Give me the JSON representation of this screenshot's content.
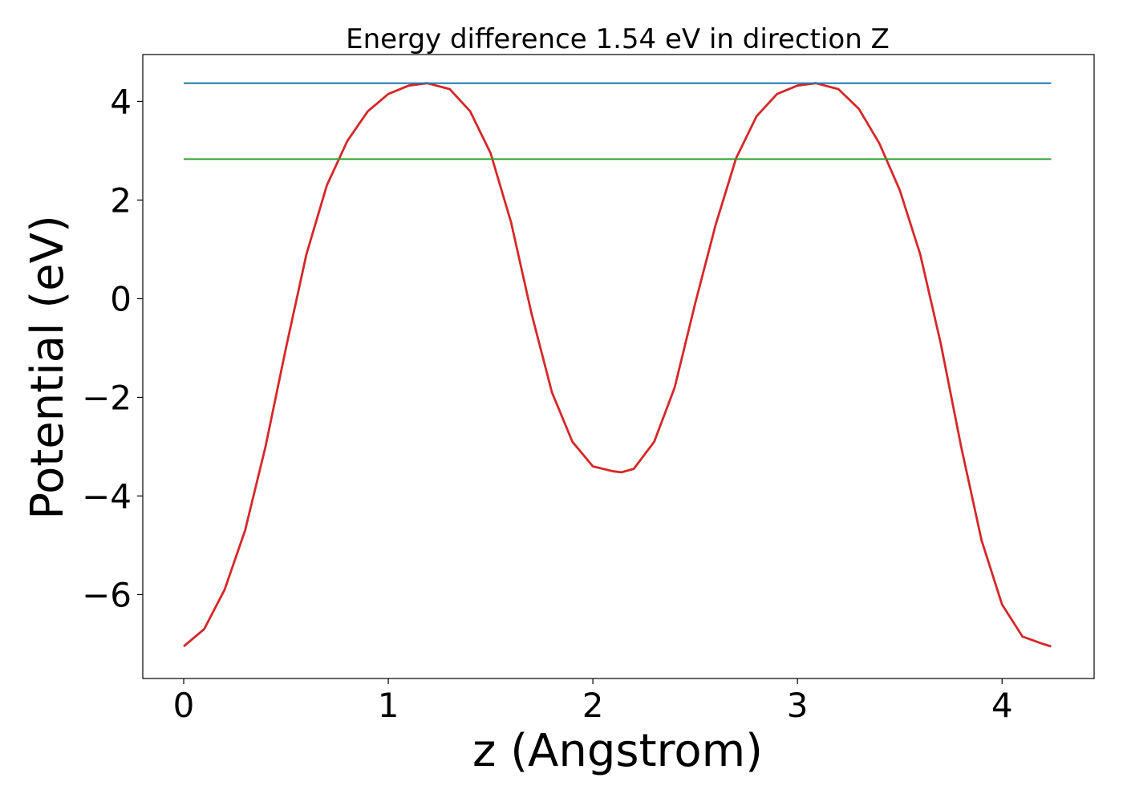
{
  "chart_data": {
    "type": "line",
    "title": "Energy difference 1.54 eV in direction Z",
    "xlabel": "z (Angstrom)",
    "ylabel": "Potential (eV)",
    "xlim": [
      -0.2,
      4.45
    ],
    "ylim": [
      -7.7,
      4.95
    ],
    "xticks": [
      0,
      1,
      2,
      3,
      4
    ],
    "yticks": [
      -6,
      -4,
      -2,
      0,
      2,
      4
    ],
    "xtick_labels": [
      "0",
      "1",
      "2",
      "3",
      "4"
    ],
    "ytick_labels": [
      "−6",
      "−4",
      "−2",
      "0",
      "2",
      "4"
    ],
    "grid": false,
    "series": [
      {
        "color": "#d62728",
        "x": [
          0.0,
          0.1,
          0.2,
          0.3,
          0.4,
          0.5,
          0.6,
          0.7,
          0.8,
          0.9,
          1.0,
          1.1,
          1.19,
          1.3,
          1.4,
          1.5,
          1.6,
          1.7,
          1.8,
          1.9,
          2.0,
          2.1,
          2.14,
          2.2,
          2.3,
          2.4,
          2.5,
          2.6,
          2.7,
          2.8,
          2.9,
          3.0,
          3.09,
          3.2,
          3.3,
          3.4,
          3.5,
          3.6,
          3.7,
          3.8,
          3.9,
          4.0,
          4.1,
          4.2,
          4.24
        ],
        "y": [
          -7.05,
          -6.7,
          -5.9,
          -4.7,
          -3.0,
          -1.0,
          0.9,
          2.3,
          3.2,
          3.8,
          4.15,
          4.32,
          4.37,
          4.25,
          3.8,
          2.95,
          1.55,
          -0.3,
          -1.9,
          -2.9,
          -3.4,
          -3.5,
          -3.52,
          -3.45,
          -2.9,
          -1.8,
          -0.1,
          1.5,
          2.85,
          3.7,
          4.15,
          4.32,
          4.37,
          4.25,
          3.85,
          3.15,
          2.2,
          0.9,
          -0.9,
          -3.0,
          -4.9,
          -6.2,
          -6.85,
          -7.0,
          -7.05
        ]
      },
      {
        "color": "#1f77b4",
        "x": [
          0.0,
          4.24
        ],
        "y": [
          4.37,
          4.37
        ]
      },
      {
        "color": "#2ca02c",
        "x": [
          0.0,
          4.24
        ],
        "y": [
          2.83,
          2.83
        ]
      }
    ]
  }
}
